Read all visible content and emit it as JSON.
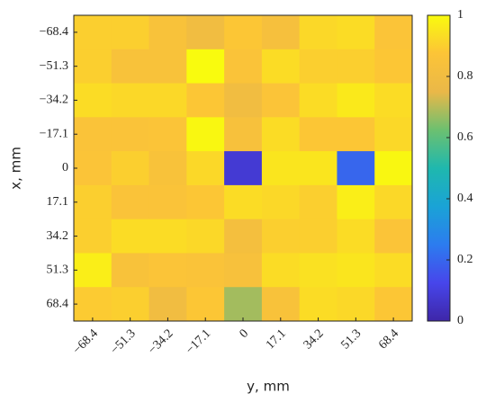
{
  "chart_data": {
    "type": "heatmap",
    "x_label": "y, mm",
    "y_label": "x, mm",
    "x": [
      "−68.4",
      "−51.3",
      "−34.2",
      "−17.1",
      "0",
      "17.1",
      "34.2",
      "51.3",
      "68.4"
    ],
    "y": [
      "−68.4",
      "−51.3",
      "−34.2",
      "−17.1",
      "0",
      "17.1",
      "34.2",
      "51.3",
      "68.4"
    ],
    "z": [
      [
        0.9,
        0.9,
        0.85,
        0.8,
        0.88,
        0.83,
        0.92,
        0.93,
        0.87
      ],
      [
        0.9,
        0.85,
        0.85,
        1.0,
        0.86,
        0.93,
        0.9,
        0.9,
        0.88
      ],
      [
        0.93,
        0.92,
        0.92,
        0.88,
        0.8,
        0.87,
        0.93,
        0.96,
        0.93
      ],
      [
        0.86,
        0.86,
        0.87,
        0.99,
        0.84,
        0.93,
        0.88,
        0.88,
        0.92
      ],
      [
        0.87,
        0.9,
        0.85,
        0.92,
        0.08,
        0.95,
        0.95,
        0.2,
        0.99
      ],
      [
        0.9,
        0.86,
        0.86,
        0.88,
        0.93,
        0.92,
        0.9,
        0.97,
        0.92
      ],
      [
        0.9,
        0.93,
        0.93,
        0.92,
        0.82,
        0.9,
        0.9,
        0.93,
        0.87
      ],
      [
        0.97,
        0.85,
        0.87,
        0.86,
        0.84,
        0.93,
        0.94,
        0.95,
        0.93
      ],
      [
        0.89,
        0.9,
        0.8,
        0.88,
        0.68,
        0.85,
        0.93,
        0.92,
        0.88
      ]
    ],
    "clim": [
      0,
      1
    ],
    "cticks": [
      0,
      0.2,
      0.4,
      0.6,
      0.8,
      1
    ],
    "colormap": [
      "#3e26a8",
      "#4746eb",
      "#2c7cef",
      "#1aa3d6",
      "#1fb8ae",
      "#6cc070",
      "#eab848",
      "#fcc437",
      "#f9fb0e"
    ]
  }
}
